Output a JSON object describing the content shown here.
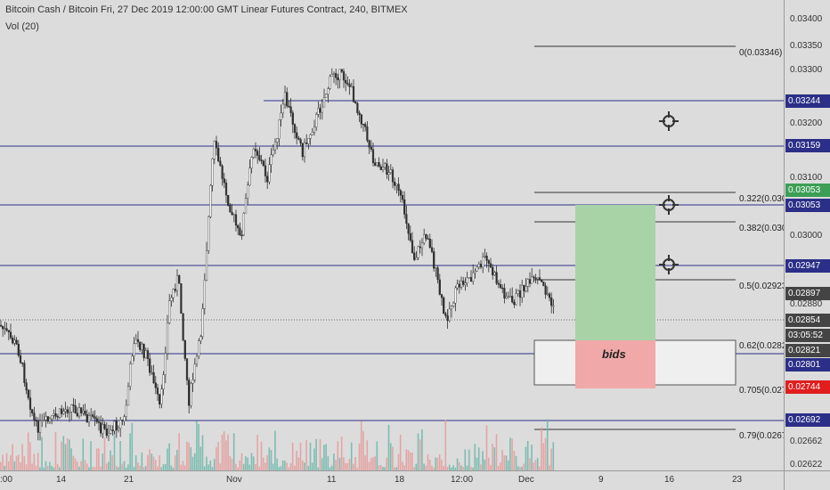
{
  "header": {
    "title": "Bitcoin Cash / Bitcoin Fri, 27 Dec 2019 12:00:00 GMT Linear Futures Contract, 240, BITMEX",
    "indicator": "Vol (20)"
  },
  "price_axis": {
    "ticks": [
      "0.03400",
      "0.03350",
      "0.03300",
      "0.03200",
      "0.03100",
      "0.03000",
      "0.02880",
      "0.02622"
    ],
    "tags": [
      {
        "label": "0.03244",
        "bg": "#2b2f87"
      },
      {
        "label": "0.03159",
        "bg": "#2b2f87"
      },
      {
        "label": "0.03053",
        "bg": "#3d9e55"
      },
      {
        "label": "0.03053",
        "bg": "#2b2f87"
      },
      {
        "label": "0.02947",
        "bg": "#2b2f87"
      },
      {
        "label": "0.02897",
        "bg": "#444444"
      },
      {
        "label": "0.02854",
        "bg": "#444444"
      },
      {
        "label": "03:05:52",
        "bg": "#444444"
      },
      {
        "label": "0.02821",
        "bg": "#444444"
      },
      {
        "label": "0.02801",
        "bg": "#2b2f87"
      },
      {
        "label": "0.02744",
        "bg": "#e01e1e"
      },
      {
        "label": "0.02692",
        "bg": "#2b2f87"
      },
      {
        "label": "0.02662",
        "bg": "none"
      }
    ]
  },
  "time_axis": {
    "labels": [
      ":00",
      "14",
      "21",
      "Nov",
      "11",
      "18",
      "12:00",
      "Dec",
      "9",
      "16",
      "23"
    ]
  },
  "fib": {
    "labels": [
      "0(0.03346)",
      "0.322(0.030",
      "0.382(0.030",
      "0.5(0.02923",
      "0.62(0.0282",
      "0.705(0.027",
      "0.79(0.0267"
    ]
  },
  "zone": {
    "bids_label": "bids"
  },
  "colors": {
    "level_line": "#2b2f87",
    "up": "#2f2f2f",
    "vol_up": "#6cb7a9",
    "vol_down": "#e59a9a",
    "profit_zone": "#a7d3a7",
    "loss_zone": "#f0a8a8"
  },
  "icons": [
    "crosshair-icon",
    "crosshair-icon",
    "crosshair-icon"
  ]
}
